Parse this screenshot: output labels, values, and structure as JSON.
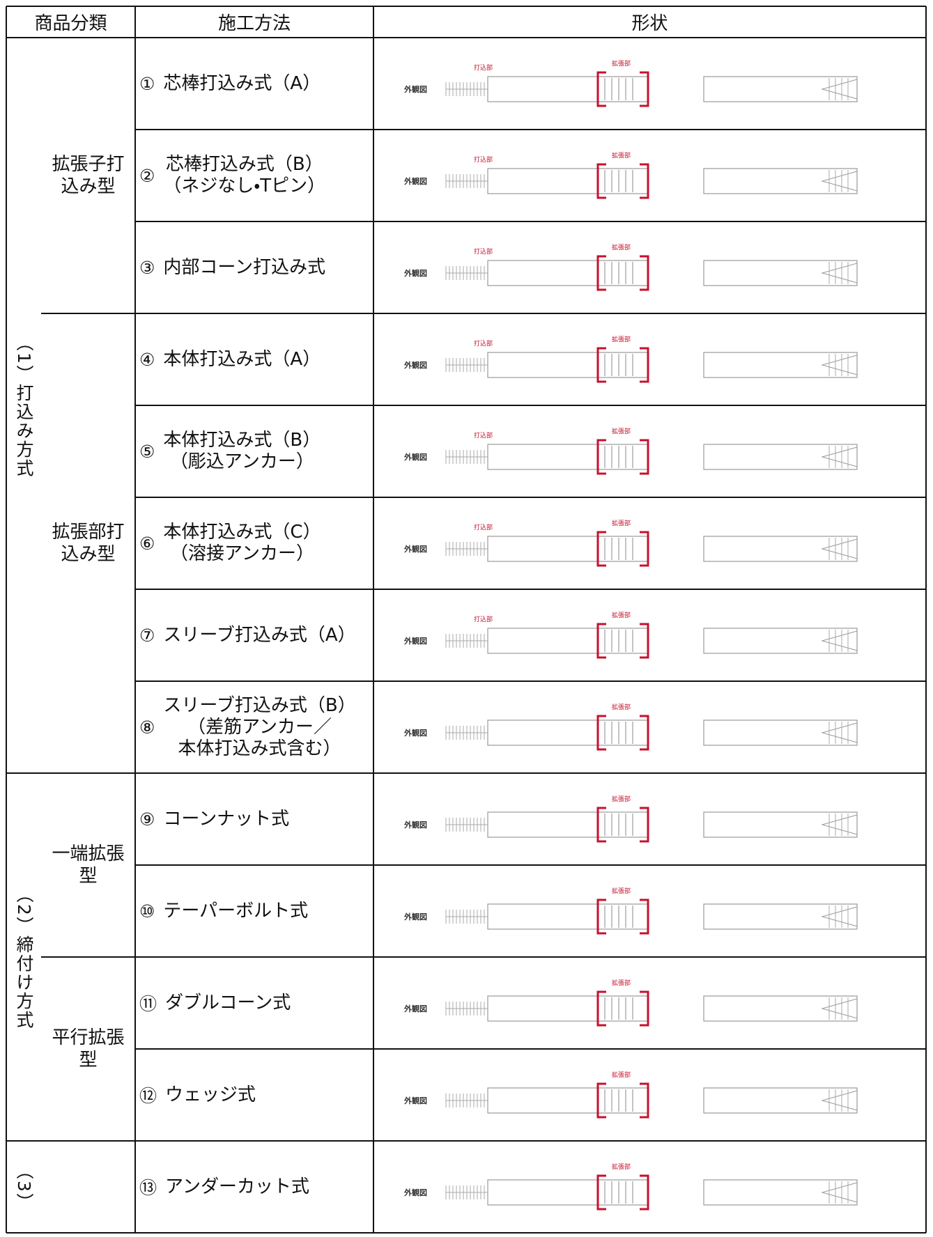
{
  "header": [
    "商品分類",
    "施工方法",
    "形状"
  ],
  "categories": [
    {
      "label": "（1）打込み方式",
      "subgroups": [
        {
          "label": "拡張子打込み型",
          "methods": [
            {
              "number": "①",
              "lines": [
                "芯棒打込み式（A）"
              ],
              "figure_label": "外観図",
              "parts": [
                "打込部",
                "拡張部"
              ]
            },
            {
              "number": "②",
              "lines": [
                "芯棒打込み式（B）",
                "（ネジなし・Tピン）"
              ],
              "figure_label": "外観図",
              "parts": [
                "打込部",
                "拡張部"
              ]
            },
            {
              "number": "③",
              "lines": [
                "内部コーン打込み式"
              ],
              "figure_label": "外観図",
              "parts": [
                "打込部",
                "拡張部"
              ]
            }
          ]
        },
        {
          "label": "拡張部打込み型",
          "methods": [
            {
              "number": "④",
              "lines": [
                "本体打込み式（A）"
              ],
              "figure_label": "外観図",
              "parts": [
                "打込部",
                "拡張部"
              ]
            },
            {
              "number": "⑤",
              "lines": [
                "本体打込み式（B）",
                "（彫込アンカー）"
              ],
              "figure_label": "外観図",
              "parts": [
                "打込部",
                "拡張部"
              ]
            },
            {
              "number": "⑥",
              "lines": [
                "本体打込み式（C）",
                "（溶接アンカー）"
              ],
              "figure_label": "外観図",
              "parts": [
                "打込部",
                "拡張部"
              ]
            },
            {
              "number": "⑦",
              "lines": [
                "スリーブ打込み式（A）"
              ],
              "figure_label": "外観図",
              "parts": [
                "打込部",
                "拡張部"
              ]
            },
            {
              "number": "⑧",
              "lines": [
                "スリーブ打込み式（B）",
                "（差筋アンカー／",
                "本体打込み式含む）"
              ],
              "figure_label": "外観図",
              "parts": [
                "拡張部"
              ]
            }
          ]
        }
      ]
    },
    {
      "label": "（2）締付け方式",
      "subgroups": [
        {
          "label": "一端拡張型",
          "methods": [
            {
              "number": "⑨",
              "lines": [
                "コーンナット式"
              ],
              "figure_label": "外観図",
              "parts": [
                "拡張部"
              ]
            },
            {
              "number": "⑩",
              "lines": [
                "テーパーボルト式"
              ],
              "figure_label": "外観図",
              "parts": [
                "拡張部"
              ]
            }
          ]
        },
        {
          "label": "平行拡張型",
          "methods": [
            {
              "number": "⑪",
              "lines": [
                "ダブルコーン式"
              ],
              "figure_label": "外観図",
              "parts": [
                "拡張部"
              ]
            },
            {
              "number": "⑫",
              "lines": [
                "ウェッジ式"
              ],
              "figure_label": "外観図",
              "parts": [
                "拡張部"
              ]
            }
          ]
        }
      ]
    },
    {
      "label": "（3）",
      "subgroups": [
        {
          "methods": [
            {
              "number": "⑬",
              "lines": [
                "アンダーカット式"
              ],
              "figure_label": "外観図",
              "parts": [
                "拡張部"
              ]
            }
          ]
        }
      ]
    }
  ]
}
